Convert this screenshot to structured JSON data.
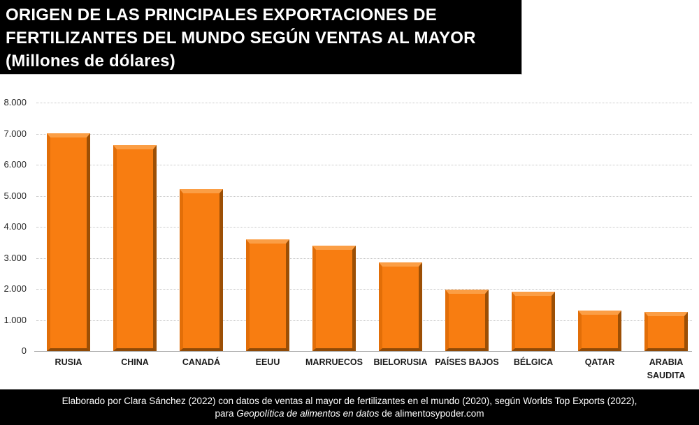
{
  "header": {
    "line1": "ORIGEN DE LAS PRINCIPALES EXPORTACIONES DE",
    "line2": "FERTILIZANTES DEL MUNDO SEGÚN VENTAS AL MAYOR",
    "line3": "(Millones de dólares)"
  },
  "footer": {
    "line1": "Elaborado por Clara Sánchez (2022) con datos de ventas al mayor de fertilizantes en el mundo (2020), según Worlds Top Exports (2022),",
    "line2_prefix": "para ",
    "line2_italic": "Geopolítica de alimentos en datos",
    "line2_suffix": " de alimentosypoder.com"
  },
  "chart_data": {
    "type": "bar",
    "title": "ORIGEN DE LAS PRINCIPALES EXPORTACIONES DE FERTILIZANTES DEL MUNDO SEGÚN VENTAS AL MAYOR",
    "subtitle": "(Millones de dólares)",
    "categories": [
      "RUSIA",
      "CHINA",
      "CANADÁ",
      "EEUU",
      "MARRUECOS",
      "BIELORUSIA",
      "PAÍSES BAJOS",
      "BÉLGICA",
      "QATAR",
      "ARABIA\nSAUDITA"
    ],
    "values": [
      7000,
      6620,
      5220,
      3600,
      3400,
      2860,
      1980,
      1910,
      1300,
      1250
    ],
    "xlabel": "",
    "ylabel": "",
    "ylim": [
      0,
      8000
    ],
    "ytick_step": 1000,
    "ytick_labels": [
      "0",
      "1.000",
      "2.000",
      "3.000",
      "4.000",
      "5.000",
      "6.000",
      "7.000",
      "8.000"
    ],
    "grid": "horizontal-dotted",
    "legend_position": "none",
    "bar_color": "#F87D11",
    "bar_bevel": {
      "top": "#FB9E45",
      "left": "#E26E08",
      "right": "#9C4F05",
      "bottom": "#8F4A07"
    },
    "gridline_color": "#C6C6C6",
    "axis_line_color": "#A8A8A8"
  },
  "colors": {
    "title_bg": "#000000",
    "title_text": "#FFFFFF",
    "footer_bg": "#000000",
    "footer_text": "#FFFFFF",
    "background": "#FFFFFF"
  }
}
